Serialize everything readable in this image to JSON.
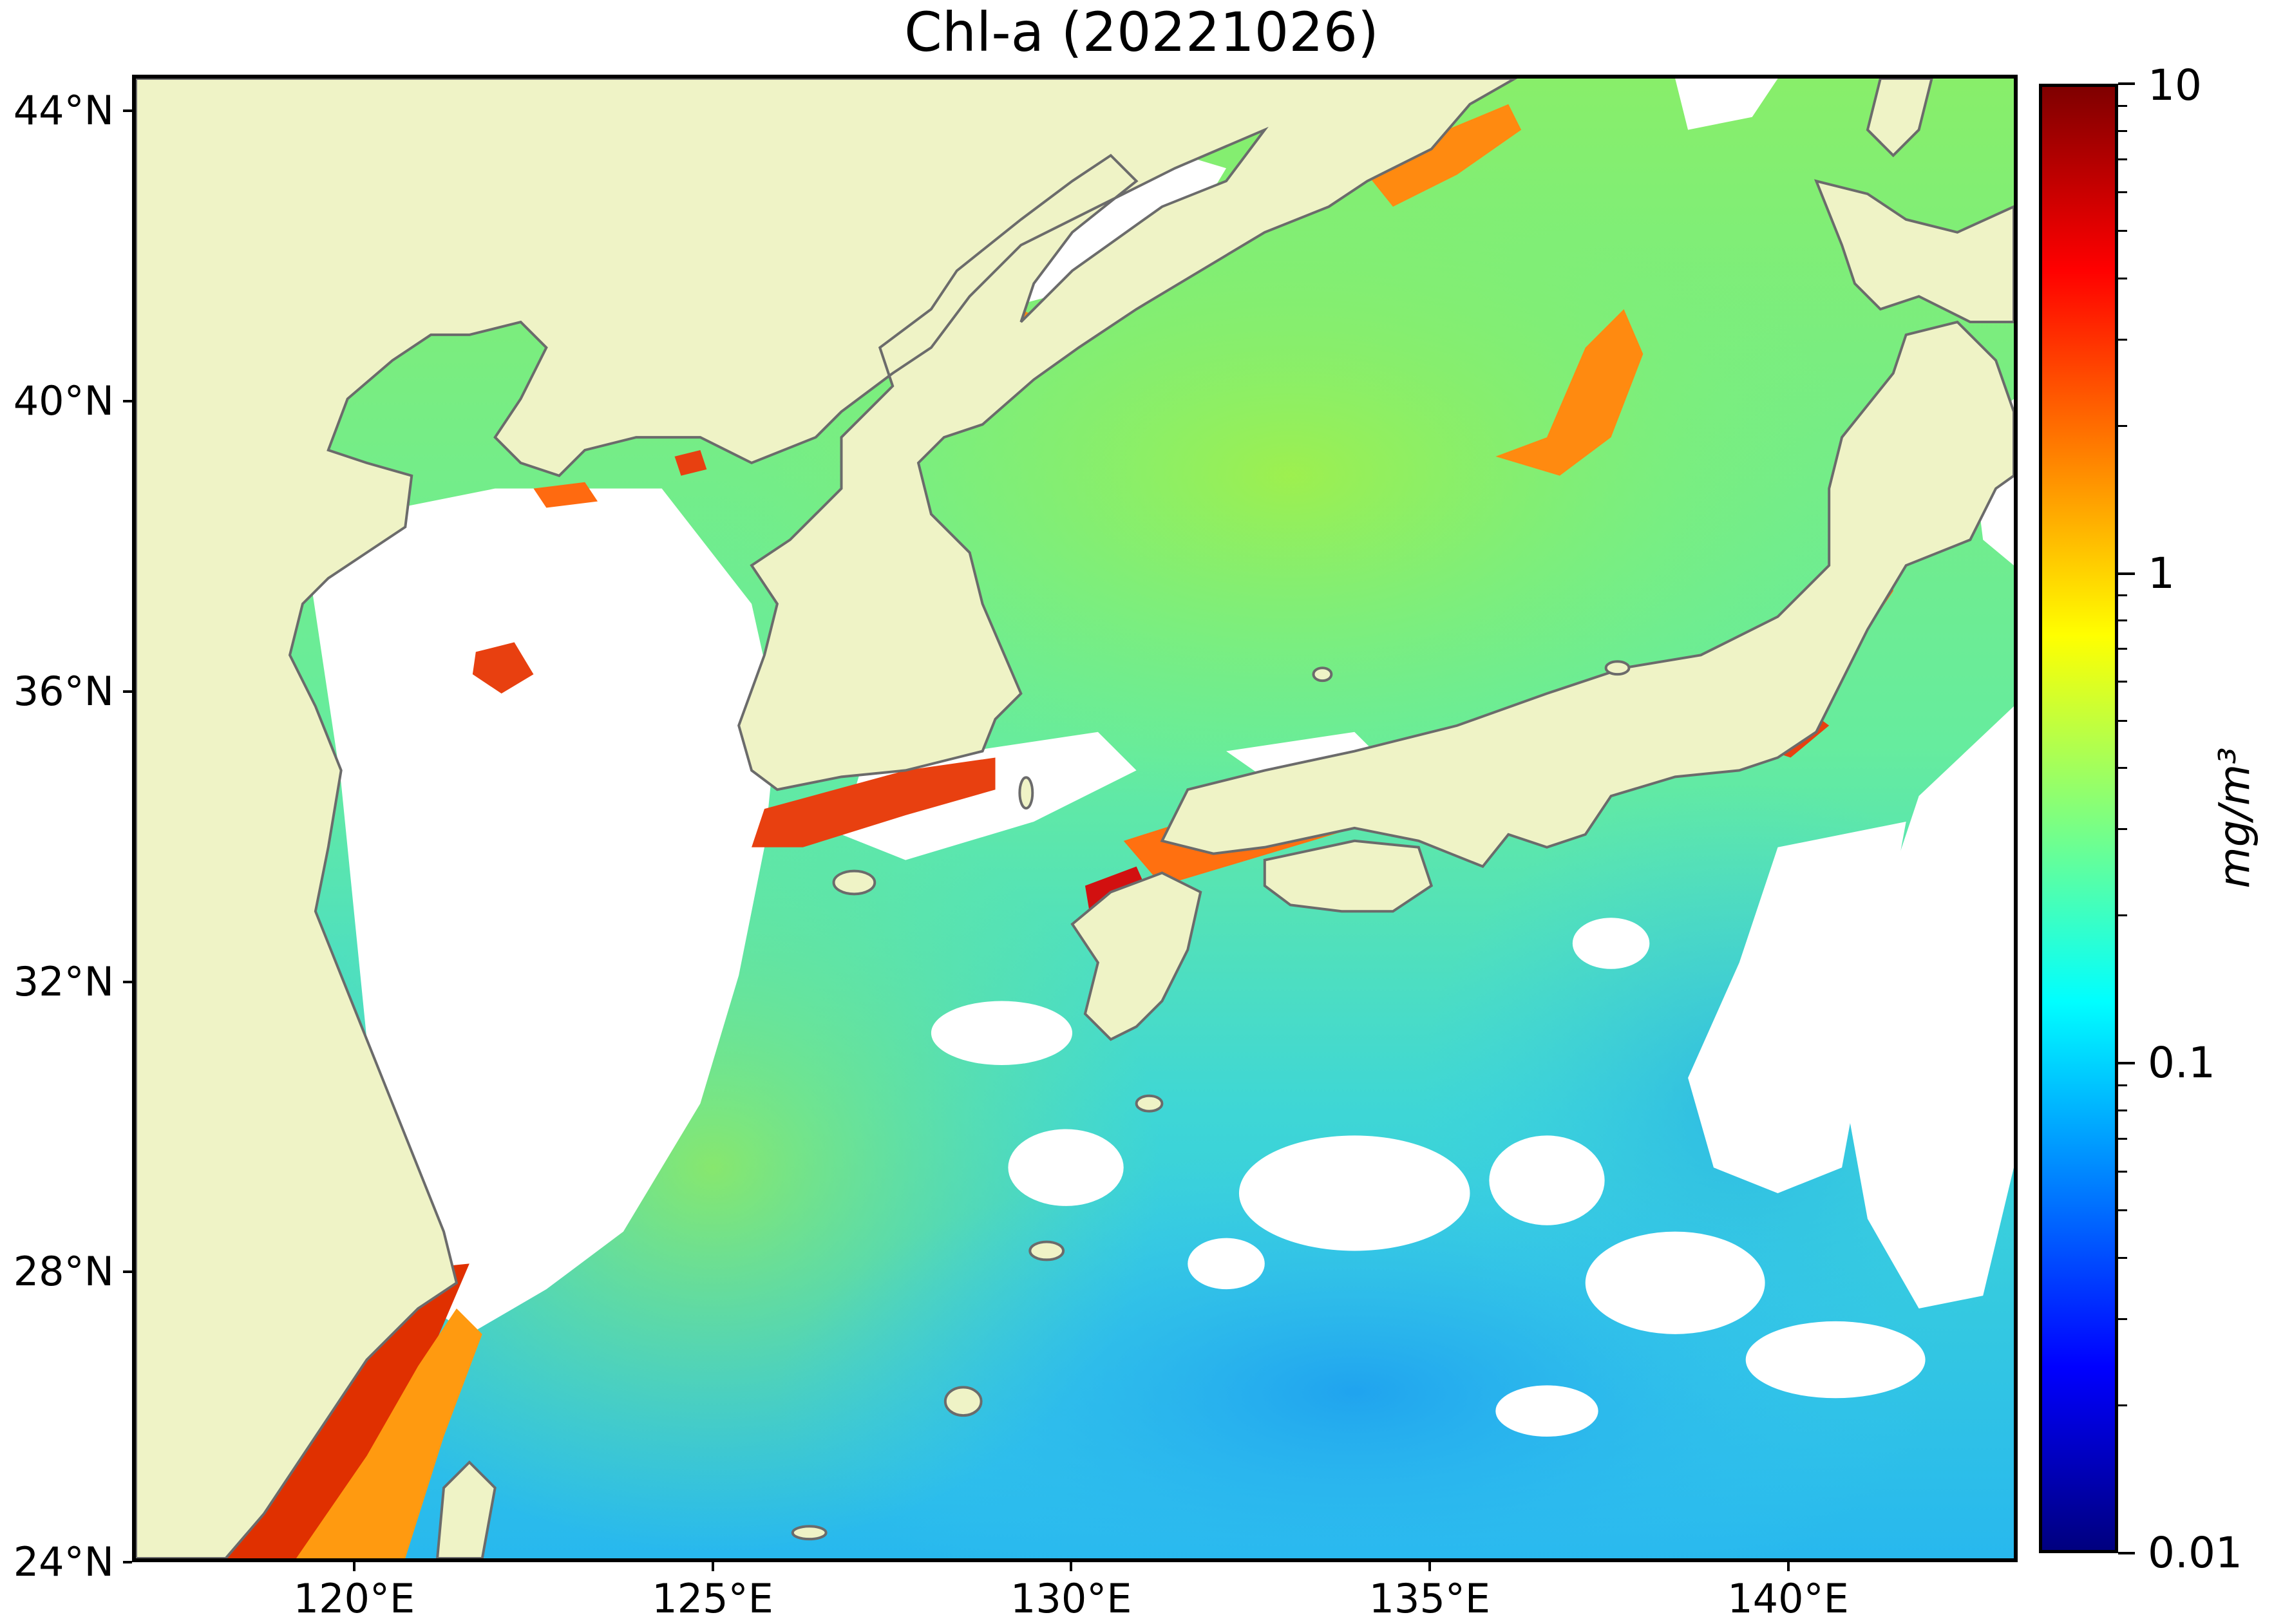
{
  "title": "Chl-a (20221026)",
  "map": {
    "lon_range": [
      116.9,
      143.2
    ],
    "lat_range": [
      24.0,
      44.5
    ],
    "lat_ticks": [
      {
        "value": 44,
        "label": "44°N"
      },
      {
        "value": 40,
        "label": "40°N"
      },
      {
        "value": 36,
        "label": "36°N"
      },
      {
        "value": 32,
        "label": "32°N"
      },
      {
        "value": 28,
        "label": "28°N"
      },
      {
        "value": 24,
        "label": "24°N"
      }
    ],
    "lon_ticks": [
      {
        "value": 120,
        "label": "120°E"
      },
      {
        "value": 125,
        "label": "125°E"
      },
      {
        "value": 130,
        "label": "130°E"
      },
      {
        "value": 135,
        "label": "135°E"
      },
      {
        "value": 140,
        "label": "140°E"
      }
    ],
    "colors": {
      "land": "#eff3c6",
      "no_data": "#ffffff",
      "coastline": "#6b6b6b"
    }
  },
  "colorbar": {
    "scale": "log",
    "range": [
      0.01,
      10
    ],
    "ticks": [
      {
        "value": 10,
        "label": "10"
      },
      {
        "value": 1,
        "label": "1"
      },
      {
        "value": 0.1,
        "label": "0.1"
      },
      {
        "value": 0.01,
        "label": "0.01"
      }
    ],
    "unit": "mg/m³",
    "colormap": [
      "#00007f",
      "#0000ff",
      "#007fff",
      "#00ffff",
      "#7fff7f",
      "#ffff00",
      "#ff7f00",
      "#ff0000",
      "#7f0000"
    ]
  }
}
